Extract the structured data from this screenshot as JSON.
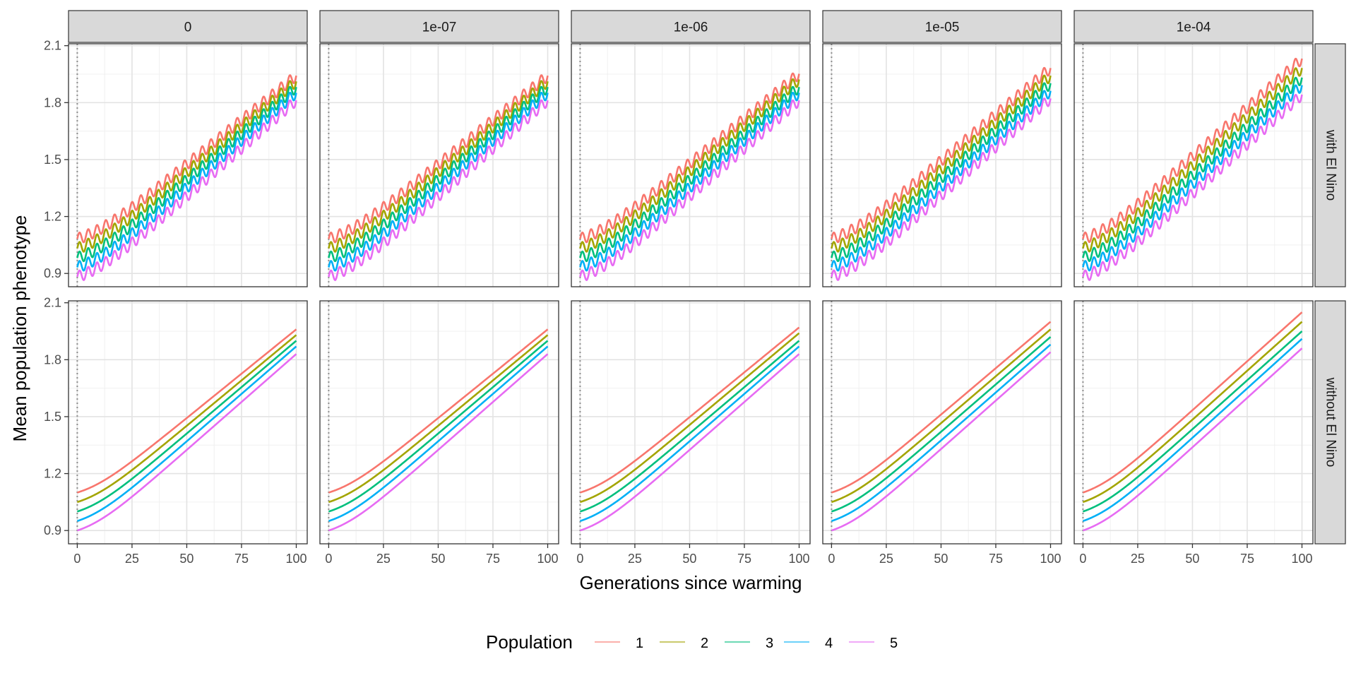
{
  "chart_data": {
    "type": "line",
    "xlabel": "Generations since warming",
    "ylabel": "Mean population phenotype",
    "xlim": [
      -4,
      105
    ],
    "ylim": [
      0.83,
      2.11
    ],
    "x_ticks": [
      0,
      25,
      50,
      75,
      100
    ],
    "y_ticks": [
      0.9,
      1.2,
      1.5,
      1.8,
      2.1
    ],
    "x_tick_labels": [
      "0",
      "25",
      "50",
      "75",
      "100"
    ],
    "y_tick_labels": [
      "0.9",
      "1.2",
      "1.5",
      "1.8",
      "2.1"
    ],
    "grid": true,
    "vline_x": 0,
    "column_facets": [
      "0",
      "1e-07",
      "1e-06",
      "1e-05",
      "1e-04"
    ],
    "row_facets": [
      "with El Nino",
      "without El Nino"
    ],
    "legend": {
      "title": "Population",
      "position": "bottom",
      "entries": [
        "1",
        "2",
        "3",
        "4",
        "5"
      ]
    },
    "series": [
      {
        "name": "1",
        "color": "#F8766D",
        "start": 1.1
      },
      {
        "name": "2",
        "color": "#A3A500",
        "start": 1.05
      },
      {
        "name": "3",
        "color": "#00BF7D",
        "start": 1.0
      },
      {
        "name": "4",
        "color": "#00B0F6",
        "start": 0.95
      },
      {
        "name": "5",
        "color": "#E76BF3",
        "start": 0.9
      }
    ],
    "series_end_values": {
      "0": [
        1.96,
        1.93,
        1.9,
        1.87,
        1.83
      ],
      "1e-07": [
        1.96,
        1.93,
        1.9,
        1.87,
        1.83
      ],
      "1e-06": [
        1.97,
        1.94,
        1.9,
        1.87,
        1.83
      ],
      "1e-05": [
        2.0,
        1.96,
        1.92,
        1.88,
        1.84
      ],
      "1e-04": [
        2.05,
        2.0,
        1.95,
        1.91,
        1.86
      ]
    },
    "el_nino_oscillation": {
      "amplitude": 0.03,
      "period_generations": 4
    }
  }
}
